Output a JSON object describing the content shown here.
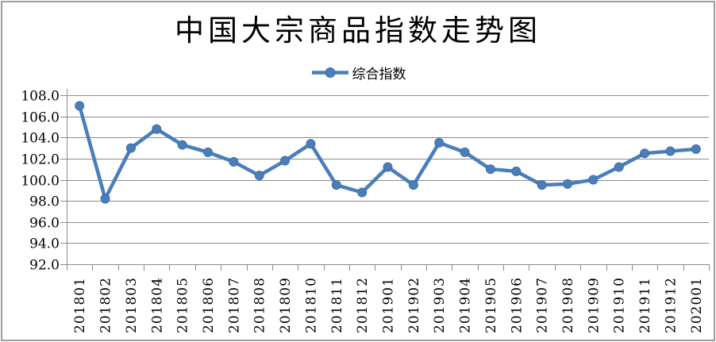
{
  "chart": {
    "title": "中国大宗商品指数走势图",
    "legend": "综合指数"
  },
  "chart_data": {
    "type": "line",
    "title": "中国大宗商品指数走势图",
    "legend": {
      "position": "top-center",
      "entries": [
        "综合指数"
      ]
    },
    "categories": [
      "201801",
      "201802",
      "201803",
      "201804",
      "201805",
      "201806",
      "201807",
      "201808",
      "201809",
      "201810",
      "201811",
      "201812",
      "201901",
      "201902",
      "201903",
      "201904",
      "201905",
      "201906",
      "201907",
      "201908",
      "201909",
      "201910",
      "201911",
      "201912",
      "202001"
    ],
    "series": [
      {
        "name": "综合指数",
        "marker": "circle",
        "values": [
          107.0,
          98.2,
          103.0,
          104.8,
          103.3,
          102.6,
          101.7,
          100.4,
          101.8,
          103.4,
          99.5,
          98.8,
          101.2,
          99.5,
          103.5,
          102.6,
          101.0,
          100.8,
          99.5,
          99.6,
          100.0,
          101.2,
          102.5,
          102.7,
          102.9
        ]
      }
    ],
    "ylim": [
      92.0,
      108.0
    ],
    "ytick_step": 2.0,
    "ytick_labels": [
      "108.0",
      "106.0",
      "104.0",
      "102.0",
      "100.0",
      "98.0",
      "96.0",
      "94.0",
      "92.0"
    ],
    "xtick_rotation_degrees": 90,
    "grid": true,
    "colors": {
      "series": "#4a7ebb",
      "series_marker_edge": "#3f6da3",
      "gridline": "#8c8c8c",
      "axis": "#8c8c8c",
      "text": "#000000",
      "frame_border": "#9e9e9e",
      "background": "#ffffff"
    }
  }
}
